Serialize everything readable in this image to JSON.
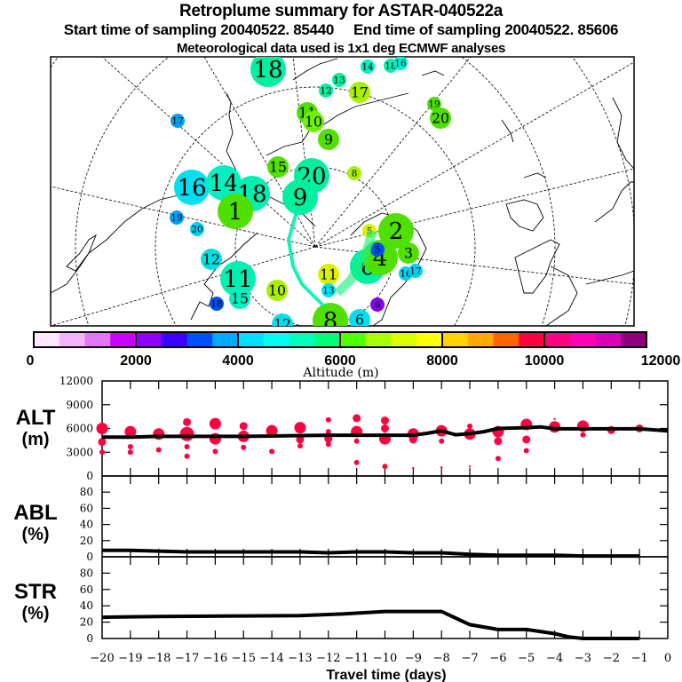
{
  "header": {
    "title": "Retroplume summary for ASTAR-040522a",
    "start_label": "Start time of sampling 20040522. 85440",
    "end_label": "End time of sampling 20040522. 85606",
    "met_label": "Meteorological data used is 1x1 deg ECMWF analyses"
  },
  "colorbar": {
    "label": "Altitude (m)",
    "tick_labels": [
      "0",
      "2000",
      "4000",
      "6000",
      "8000",
      "10000",
      "12000"
    ],
    "range": [
      0,
      12000
    ],
    "colors": [
      "#ffe6ff",
      "#f5b4fa",
      "#e177f5",
      "#c800ff",
      "#8c00ff",
      "#3c00ff",
      "#0050ff",
      "#00aaff",
      "#00e1ff",
      "#00fff0",
      "#00ffbe",
      "#00ff78",
      "#50ff00",
      "#aaff00",
      "#dcff00",
      "#ffff00",
      "#ffd200",
      "#ffaa00",
      "#ff6400",
      "#ff0040",
      "#ff0080",
      "#ff00b4",
      "#dc00b4",
      "#8c0080"
    ]
  },
  "map": {
    "markers": [
      {
        "label": "18",
        "zone": "top-center",
        "color": "#00f0a0",
        "size": "large"
      },
      {
        "label": "14",
        "zone": "top-center",
        "color": "#00f0c0",
        "size": "small"
      },
      {
        "label": "18",
        "zone": "top-center",
        "color": "#00f0b0",
        "size": "small"
      },
      {
        "label": "16",
        "zone": "top-center",
        "color": "#00f0d0",
        "size": "small"
      },
      {
        "label": "13",
        "zone": "top-center",
        "color": "#00f0a0",
        "size": "small"
      },
      {
        "label": "12",
        "zone": "top-center",
        "color": "#00f0a0",
        "size": "small"
      },
      {
        "label": "17",
        "zone": "top-center",
        "color": "#a8f000",
        "size": "medium"
      },
      {
        "label": "11",
        "zone": "top-center",
        "color": "#50e000",
        "size": "medium"
      },
      {
        "label": "10",
        "zone": "top-center",
        "color": "#70f000",
        "size": "medium"
      },
      {
        "label": "9",
        "zone": "top-center",
        "color": "#50e000",
        "size": "medium"
      },
      {
        "label": "8",
        "zone": "top-center",
        "color": "#a8f000",
        "size": "small"
      },
      {
        "label": "19",
        "zone": "top-right",
        "color": "#50e000",
        "size": "small"
      },
      {
        "label": "20",
        "zone": "top-right",
        "color": "#50e000",
        "size": "medium"
      },
      {
        "label": "17",
        "zone": "left",
        "color": "#00a0f0",
        "size": "small"
      },
      {
        "label": "16",
        "zone": "left",
        "color": "#00e0f0",
        "size": "large"
      },
      {
        "label": "14",
        "zone": "left",
        "color": "#00f0c0",
        "size": "large"
      },
      {
        "label": "19",
        "zone": "left",
        "color": "#00a0f0",
        "size": "small"
      },
      {
        "label": "20",
        "zone": "left",
        "color": "#00d0f0",
        "size": "small"
      },
      {
        "label": "12",
        "zone": "left",
        "color": "#00e0e0",
        "size": "medium"
      },
      {
        "label": "18",
        "zone": "left",
        "color": "#0050f0",
        "size": "small"
      },
      {
        "label": "11",
        "zone": "center-left",
        "color": "#00f0b0",
        "size": "large"
      },
      {
        "label": "15",
        "zone": "center-left",
        "color": "#00f0c0",
        "size": "medium"
      },
      {
        "label": "18",
        "zone": "center",
        "color": "#00f0b0",
        "size": "large"
      },
      {
        "label": "1",
        "zone": "center",
        "color": "#50e000",
        "size": "large"
      },
      {
        "label": "15",
        "zone": "center",
        "color": "#50e000",
        "size": "medium"
      },
      {
        "label": "20",
        "zone": "center",
        "color": "#00f0a0",
        "size": "large"
      },
      {
        "label": "9",
        "zone": "center",
        "color": "#00f0a0",
        "size": "large"
      },
      {
        "label": "10",
        "zone": "center",
        "color": "#a8f000",
        "size": "medium"
      },
      {
        "label": "11",
        "zone": "center",
        "color": "#dcf000",
        "size": "medium"
      },
      {
        "label": "13",
        "zone": "center",
        "color": "#00e0f0",
        "size": "small"
      },
      {
        "label": "12",
        "zone": "bottom-center",
        "color": "#00e0f0",
        "size": "medium"
      },
      {
        "label": "8",
        "zone": "bottom-center",
        "color": "#50e000",
        "size": "large"
      },
      {
        "label": "6",
        "zone": "bottom-center",
        "color": "#00e0f0",
        "size": "medium"
      },
      {
        "label": "6",
        "zone": "center-right",
        "color": "#00f0a0",
        "size": "large"
      },
      {
        "label": "2",
        "zone": "center-right",
        "color": "#50e000",
        "size": "large"
      },
      {
        "label": "3",
        "zone": "center-right",
        "color": "#50e000",
        "size": "medium"
      },
      {
        "label": "4",
        "zone": "center-right",
        "color": "#50e000",
        "size": "large"
      },
      {
        "label": "5",
        "zone": "center-right",
        "color": "#dcf000",
        "size": "small"
      },
      {
        "label": "5",
        "zone": "center-right",
        "color": "#0050f0",
        "size": "small"
      },
      {
        "label": "16",
        "zone": "center-right",
        "color": "#00d0f0",
        "size": "small"
      },
      {
        "label": "17",
        "zone": "center-right",
        "color": "#00d0f0",
        "size": "small"
      },
      {
        "label": "6",
        "zone": "center-right",
        "color": "#8000f0",
        "size": "small"
      }
    ]
  },
  "chart_data": [
    {
      "type": "scatter",
      "title": "ALT",
      "ylabel": "ALT (m)",
      "ylim": [
        0,
        12000
      ],
      "yticks": [
        0,
        3000,
        6000,
        9000,
        12000
      ],
      "ytick_labels": [
        "0",
        "3000",
        "6000",
        "9000",
        "12000"
      ],
      "xlim": [
        -20,
        0
      ],
      "marker_color": "#ff0040",
      "line": {
        "name": "mean altitude",
        "x": [
          -20,
          -19,
          -18,
          -17,
          -16,
          -15,
          -14,
          -13,
          -12,
          -11,
          -10,
          -9,
          -8.5,
          -8,
          -7.5,
          -7,
          -6.5,
          -6,
          -5,
          -4.5,
          -4,
          -3,
          -2,
          -1,
          0
        ],
        "y": [
          4900,
          4900,
          5000,
          5000,
          5000,
          5000,
          5050,
          5100,
          5150,
          5150,
          5150,
          5150,
          5400,
          5700,
          5200,
          5350,
          5600,
          6000,
          6100,
          6200,
          5950,
          5950,
          5950,
          5950,
          5700
        ]
      },
      "points": [
        {
          "x": -20,
          "y": 6000,
          "s": 3
        },
        {
          "x": -20,
          "y": 4300,
          "s": 2
        },
        {
          "x": -20,
          "y": 3000,
          "s": 1
        },
        {
          "x": -19,
          "y": 5600,
          "s": 3
        },
        {
          "x": -19,
          "y": 3700,
          "s": 1
        },
        {
          "x": -19,
          "y": 3000,
          "s": 1
        },
        {
          "x": -18,
          "y": 5300,
          "s": 3
        },
        {
          "x": -18,
          "y": 3300,
          "s": 1
        },
        {
          "x": -17,
          "y": 6800,
          "s": 2
        },
        {
          "x": -17,
          "y": 5300,
          "s": 4
        },
        {
          "x": -17,
          "y": 3700,
          "s": 1
        },
        {
          "x": -17,
          "y": 2500,
          "s": 1
        },
        {
          "x": -16,
          "y": 6600,
          "s": 3
        },
        {
          "x": -16,
          "y": 4700,
          "s": 3
        },
        {
          "x": -16,
          "y": 3100,
          "s": 1
        },
        {
          "x": -15,
          "y": 6300,
          "s": 2
        },
        {
          "x": -15,
          "y": 5000,
          "s": 3
        },
        {
          "x": -15,
          "y": 3600,
          "s": 1
        },
        {
          "x": -14,
          "y": 5700,
          "s": 3
        },
        {
          "x": -14,
          "y": 3100,
          "s": 1
        },
        {
          "x": -13,
          "y": 6100,
          "s": 3
        },
        {
          "x": -13,
          "y": 4600,
          "s": 2
        },
        {
          "x": -13,
          "y": 3800,
          "s": 1
        },
        {
          "x": -12,
          "y": 7100,
          "s": 1
        },
        {
          "x": -12,
          "y": 5600,
          "s": 1
        },
        {
          "x": -12,
          "y": 4700,
          "s": 2
        },
        {
          "x": -12,
          "y": 4000,
          "s": 1
        },
        {
          "x": -11,
          "y": 7300,
          "s": 2
        },
        {
          "x": -11,
          "y": 5600,
          "s": 3
        },
        {
          "x": -11,
          "y": 4400,
          "s": 1
        },
        {
          "x": -11,
          "y": 1700,
          "s": 1
        },
        {
          "x": -10,
          "y": 7000,
          "s": 2
        },
        {
          "x": -10,
          "y": 6000,
          "s": 2
        },
        {
          "x": -10,
          "y": 4700,
          "s": 3
        },
        {
          "x": -10,
          "y": 1200,
          "s": 1
        },
        {
          "x": -9,
          "y": 5300,
          "s": 3
        },
        {
          "x": -9,
          "y": 4600,
          "s": 2
        },
        {
          "x": -9,
          "y": 1000,
          "s": 0
        },
        {
          "x": -8,
          "y": 5700,
          "s": 3
        },
        {
          "x": -8,
          "y": 4400,
          "s": 1
        },
        {
          "x": -8,
          "y": 1100,
          "s": 0
        },
        {
          "x": -7,
          "y": 6300,
          "s": 1
        },
        {
          "x": -7,
          "y": 5300,
          "s": 3
        },
        {
          "x": -7,
          "y": 1200,
          "s": 0
        },
        {
          "x": -6,
          "y": 5600,
          "s": 3
        },
        {
          "x": -6,
          "y": 4400,
          "s": 2
        },
        {
          "x": -6,
          "y": 2200,
          "s": 1
        },
        {
          "x": -5,
          "y": 6500,
          "s": 3
        },
        {
          "x": -5,
          "y": 4600,
          "s": 2
        },
        {
          "x": -5,
          "y": 3200,
          "s": 1
        },
        {
          "x": -4,
          "y": 6200,
          "s": 3
        },
        {
          "x": -4,
          "y": 7200,
          "s": 0
        },
        {
          "x": -3,
          "y": 6300,
          "s": 3
        },
        {
          "x": -3,
          "y": 5200,
          "s": 1
        },
        {
          "x": -2,
          "y": 5800,
          "s": 2
        },
        {
          "x": -1,
          "y": 6000,
          "s": 2
        }
      ]
    },
    {
      "type": "line",
      "title": "ABL",
      "ylabel": "ABL (%)",
      "ylim": [
        0,
        100
      ],
      "yticks": [
        0,
        20,
        40,
        60,
        80
      ],
      "ytick_labels": [
        "0",
        "20",
        "40",
        "60",
        "80"
      ],
      "xlim": [
        -20,
        0
      ],
      "series": [
        {
          "name": "ABL",
          "x": [
            -20,
            -19,
            -18,
            -17,
            -16,
            -15,
            -14,
            -13,
            -12,
            -11,
            -10,
            -9,
            -8.5,
            -8,
            -7.5,
            -7,
            -6,
            -5,
            -4,
            -3,
            -2,
            -1
          ],
          "y": [
            8,
            8,
            7,
            6,
            6,
            6,
            6,
            6,
            5,
            6,
            6,
            5,
            5,
            5,
            4,
            3,
            2,
            2,
            2,
            1,
            1,
            1
          ]
        }
      ]
    },
    {
      "type": "line",
      "title": "STR",
      "ylabel": "STR (%)",
      "ylim": [
        0,
        100
      ],
      "yticks": [
        0,
        20,
        40,
        60,
        80
      ],
      "ytick_labels": [
        "0",
        "20",
        "40",
        "60",
        "80"
      ],
      "xlim": [
        -20,
        0
      ],
      "xlabel": "Travel time (days)",
      "xticks": [
        -20,
        -19,
        -18,
        -17,
        -16,
        -15,
        -14,
        -13,
        -12,
        -11,
        -10,
        -9,
        -8,
        -7,
        -6,
        -5,
        -4,
        -3,
        -2,
        -1,
        0
      ],
      "xtick_labels": [
        "−20",
        "−19",
        "−18",
        "−17",
        "−16",
        "−15",
        "−14",
        "−13",
        "−12",
        "−11",
        "−10",
        "−9",
        "−8",
        "−7",
        "−6",
        "−5",
        "−4",
        "−3",
        "−2",
        "−1",
        "0"
      ],
      "series": [
        {
          "name": "STR",
          "x": [
            -20,
            -18,
            -13,
            -11.5,
            -10,
            -8,
            -7,
            -6,
            -5,
            -4,
            -3.5,
            -3,
            -2,
            -1
          ],
          "y": [
            26,
            27,
            28,
            30,
            33,
            33,
            17,
            11,
            11,
            6,
            2,
            0,
            0,
            0
          ]
        }
      ]
    }
  ]
}
